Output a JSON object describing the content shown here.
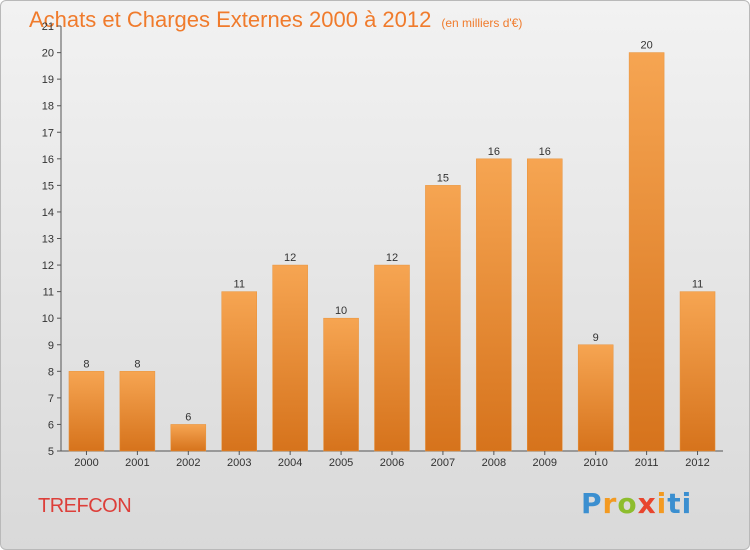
{
  "header": {
    "title": "Achats et Charges Externes 2000 à 2012",
    "unit": "(en milliers d'€)"
  },
  "place": "TREFCON",
  "logo": {
    "letters": [
      "P",
      "r",
      "o",
      "x",
      "i",
      "ti"
    ]
  },
  "colors": {
    "bar_top": "#f6a552",
    "bar_bottom": "#d6731c",
    "title": "#f07b2c",
    "place": "#dd3f3a"
  },
  "chart_data": {
    "type": "bar",
    "title": "Achats et Charges Externes 2000 à 2012",
    "subtitle": "(en milliers d'€)",
    "categories": [
      "2000",
      "2001",
      "2002",
      "2003",
      "2004",
      "2005",
      "2006",
      "2007",
      "2008",
      "2009",
      "2010",
      "2011",
      "2012"
    ],
    "values": [
      8,
      8,
      6,
      11,
      12,
      10,
      12,
      15,
      16,
      16,
      9,
      20,
      11
    ],
    "ylim": [
      5,
      21
    ],
    "yticks": [
      5,
      6,
      7,
      8,
      9,
      10,
      11,
      12,
      13,
      14,
      15,
      16,
      17,
      18,
      19,
      20,
      21
    ],
    "grid": false,
    "legend": "none"
  }
}
